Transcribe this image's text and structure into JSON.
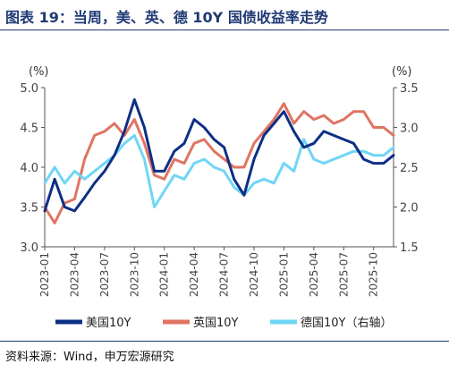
{
  "header": {
    "title": "图表 19：当周，美、英、德 10Y 国债收益率走势"
  },
  "footer": {
    "source": "资料来源：Wind，申万宏源研究"
  },
  "chart_data": {
    "type": "line",
    "left_unit": "(%)",
    "right_unit": "(%)",
    "left_axis": {
      "min": 3.0,
      "max": 5.0,
      "ticks": [
        "3.0",
        "3.5",
        "4.0",
        "4.5",
        "5.0"
      ]
    },
    "right_axis": {
      "min": 1.5,
      "max": 3.5,
      "ticks": [
        "1.5",
        "2.0",
        "2.5",
        "3.0",
        "3.5"
      ]
    },
    "x_ticks": [
      "2023-01",
      "2023-04",
      "2023-07",
      "2023-10",
      "2024-01",
      "2024-04",
      "2024-07",
      "2024-10",
      "2025-01",
      "2025-04",
      "2025-07",
      "2025-10"
    ],
    "x_range": [
      "2023-01",
      "2025-12"
    ],
    "grid": false,
    "legend_position": "bottom",
    "series": [
      {
        "name": "美国10Y",
        "axis": "left",
        "color": "#0e2f86",
        "dates": [
          "2023-01",
          "2023-02",
          "2023-03",
          "2023-04",
          "2023-05",
          "2023-06",
          "2023-07",
          "2023-08",
          "2023-09",
          "2023-10",
          "2023-11",
          "2023-12",
          "2024-01",
          "2024-02",
          "2024-03",
          "2024-04",
          "2024-05",
          "2024-06",
          "2024-07",
          "2024-08",
          "2024-09",
          "2024-10",
          "2024-11",
          "2024-12",
          "2025-01",
          "2025-02",
          "2025-03",
          "2025-04",
          "2025-05",
          "2025-06",
          "2025-07",
          "2025-08",
          "2025-09",
          "2025-10",
          "2025-11",
          "2025-12"
        ],
        "values": [
          3.45,
          3.85,
          3.5,
          3.45,
          3.62,
          3.8,
          3.95,
          4.15,
          4.45,
          4.85,
          4.5,
          3.95,
          3.95,
          4.2,
          4.3,
          4.6,
          4.5,
          4.35,
          4.25,
          3.85,
          3.65,
          4.1,
          4.4,
          4.55,
          4.7,
          4.45,
          4.25,
          4.3,
          4.45,
          4.4,
          4.35,
          4.3,
          4.1,
          4.05,
          4.05,
          4.15
        ]
      },
      {
        "name": "英国10Y",
        "axis": "left",
        "color": "#e07462",
        "dates": [
          "2023-01",
          "2023-02",
          "2023-03",
          "2023-04",
          "2023-05",
          "2023-06",
          "2023-07",
          "2023-08",
          "2023-09",
          "2023-10",
          "2023-11",
          "2023-12",
          "2024-01",
          "2024-02",
          "2024-03",
          "2024-04",
          "2024-05",
          "2024-06",
          "2024-07",
          "2024-08",
          "2024-09",
          "2024-10",
          "2024-11",
          "2024-12",
          "2025-01",
          "2025-02",
          "2025-03",
          "2025-04",
          "2025-05",
          "2025-06",
          "2025-07",
          "2025-08",
          "2025-09",
          "2025-10",
          "2025-11",
          "2025-12"
        ],
        "values": [
          3.5,
          3.3,
          3.55,
          3.6,
          4.1,
          4.4,
          4.45,
          4.55,
          4.4,
          4.6,
          4.3,
          3.9,
          3.85,
          4.1,
          4.05,
          4.3,
          4.35,
          4.2,
          4.1,
          4.0,
          4.0,
          4.3,
          4.45,
          4.6,
          4.8,
          4.55,
          4.7,
          4.6,
          4.65,
          4.55,
          4.6,
          4.7,
          4.7,
          4.5,
          4.5,
          4.4
        ]
      },
      {
        "name": "德国10Y（右轴）",
        "axis": "right",
        "color": "#6fd6f5",
        "dates": [
          "2023-01",
          "2023-02",
          "2023-03",
          "2023-04",
          "2023-05",
          "2023-06",
          "2023-07",
          "2023-08",
          "2023-09",
          "2023-10",
          "2023-11",
          "2023-12",
          "2024-01",
          "2024-02",
          "2024-03",
          "2024-04",
          "2024-05",
          "2024-06",
          "2024-07",
          "2024-08",
          "2024-09",
          "2024-10",
          "2024-11",
          "2024-12",
          "2025-01",
          "2025-02",
          "2025-03",
          "2025-04",
          "2025-05",
          "2025-06",
          "2025-07",
          "2025-08",
          "2025-09",
          "2025-10",
          "2025-11",
          "2025-12"
        ],
        "values": [
          2.3,
          2.5,
          2.3,
          2.45,
          2.35,
          2.45,
          2.55,
          2.65,
          2.8,
          2.9,
          2.6,
          2.0,
          2.2,
          2.4,
          2.35,
          2.55,
          2.6,
          2.5,
          2.45,
          2.25,
          2.15,
          2.3,
          2.35,
          2.3,
          2.55,
          2.45,
          2.85,
          2.6,
          2.55,
          2.6,
          2.65,
          2.7,
          2.7,
          2.65,
          2.65,
          2.75
        ]
      }
    ]
  }
}
